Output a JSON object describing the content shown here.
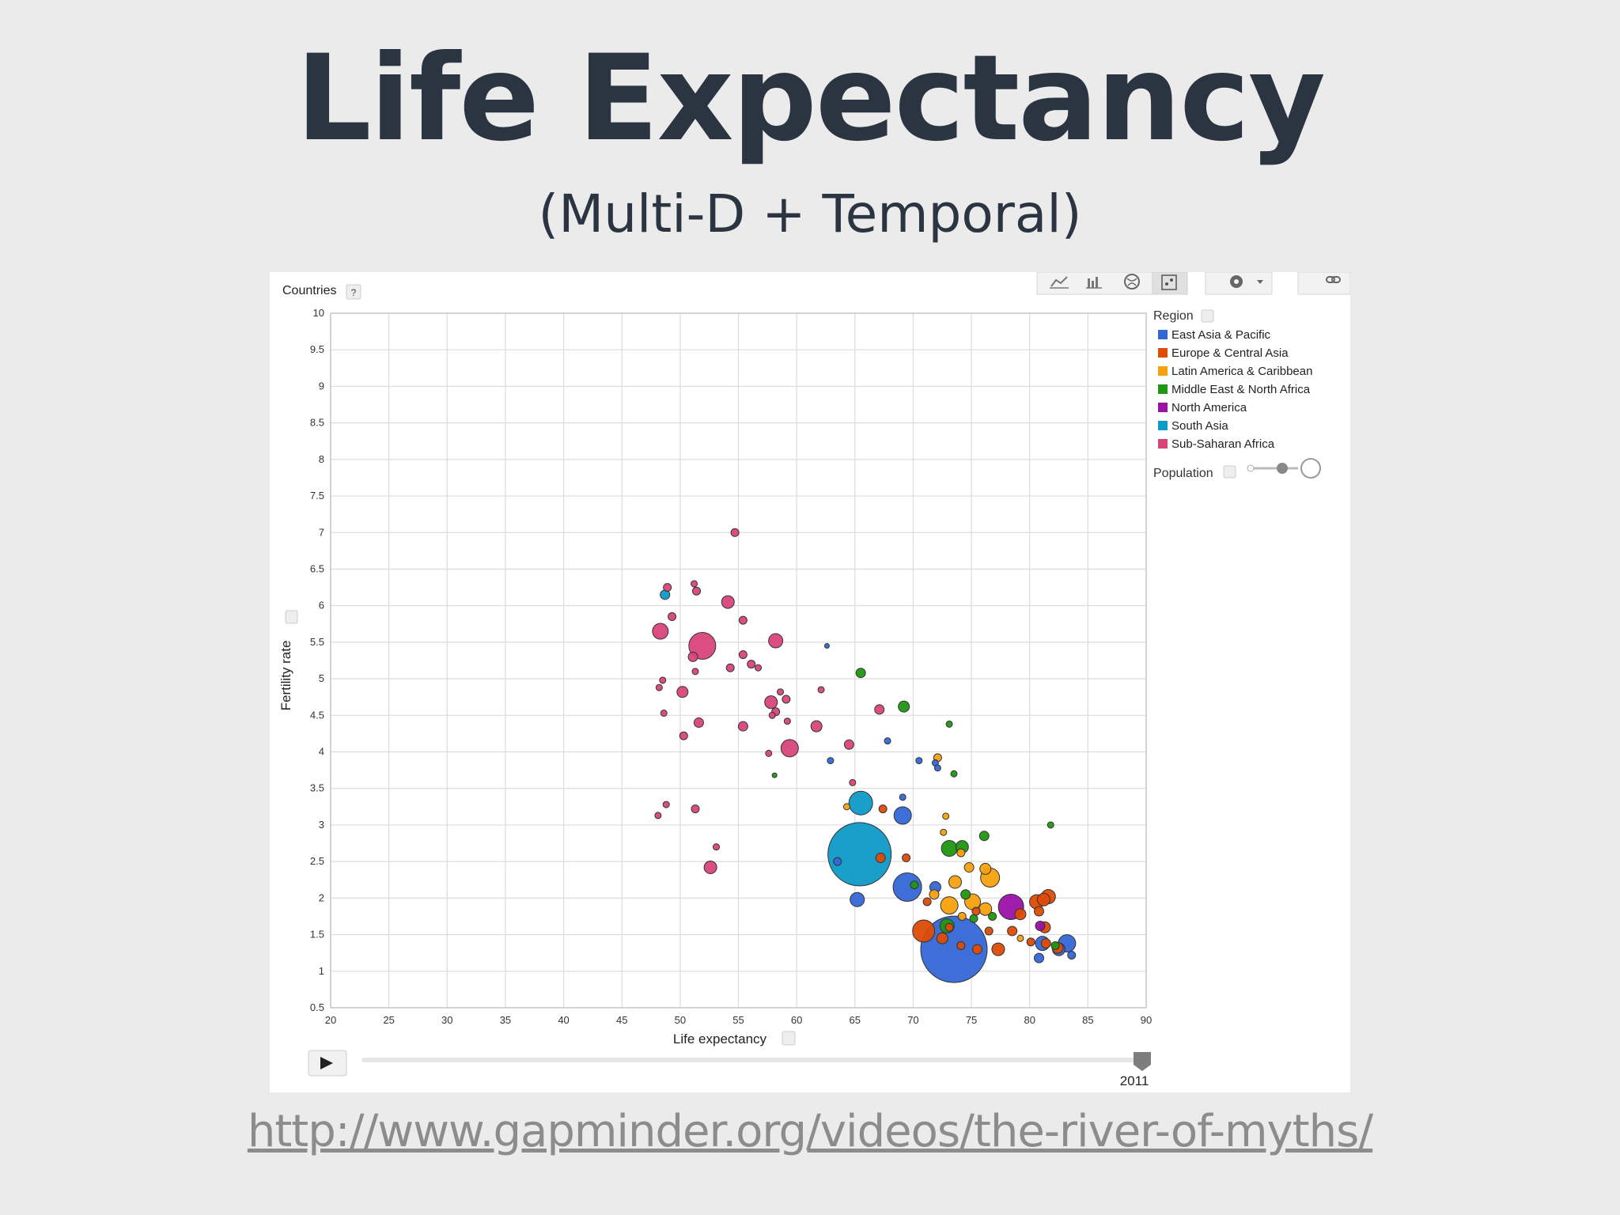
{
  "slide": {
    "title": "Life Expectancy",
    "subtitle": "(Multi-D + Temporal)",
    "link": "http://www.gapminder.org/videos/the-river-of-myths/"
  },
  "controls": {
    "entity_label": "Countries",
    "help": "?",
    "toolbar_icons": [
      "line-chart-icon",
      "bar-chart-icon",
      "map-icon",
      "bubble-chart-icon",
      "gear-icon",
      "link-icon"
    ],
    "play_icon": "play-icon",
    "year": "2011",
    "population_label": "Population"
  },
  "colors": {
    "East Asia & Pacific": "#3467d6",
    "Europe & Central Asia": "#dd4b06",
    "Latin America & Caribbean": "#f7a10d",
    "Middle East & North Africa": "#1f9710",
    "North America": "#9a11a5",
    "South Asia": "#0e9ac7",
    "Sub-Saharan Africa": "#d8457a"
  },
  "chart_data": {
    "type": "scatter",
    "xlabel": "Life expectancy",
    "ylabel": "Fertility rate",
    "xlim": [
      20,
      90
    ],
    "ylim": [
      0.5,
      10
    ],
    "xticks": [
      "20",
      "25",
      "30",
      "35",
      "40",
      "45",
      "50",
      "55",
      "60",
      "65",
      "70",
      "75",
      "80",
      "85",
      "90"
    ],
    "yticks": [
      "0.5",
      "1",
      "1.5",
      "2",
      "2.5",
      "3",
      "3.5",
      "4",
      "4.5",
      "5",
      "5.5",
      "6",
      "6.5",
      "7",
      "7.5",
      "8",
      "8.5",
      "9",
      "9.5",
      "10"
    ],
    "grid": true,
    "legend_title": "Region",
    "legend_position": "right",
    "legend": [
      "East Asia & Pacific",
      "Europe & Central Asia",
      "Latin America & Caribbean",
      "Middle East & North Africa",
      "North America",
      "South Asia",
      "Sub-Saharan Africa"
    ],
    "size_variable": "Population",
    "year": "2011",
    "series": [
      {
        "name": "Sub-Saharan Africa",
        "points": [
          {
            "x": 54.7,
            "y": 7.0,
            "r": 5
          },
          {
            "x": 48.9,
            "y": 6.25,
            "r": 5
          },
          {
            "x": 51.2,
            "y": 6.3,
            "r": 4
          },
          {
            "x": 51.4,
            "y": 6.2,
            "r": 5
          },
          {
            "x": 54.1,
            "y": 6.05,
            "r": 8
          },
          {
            "x": 49.3,
            "y": 5.85,
            "r": 5
          },
          {
            "x": 55.4,
            "y": 5.8,
            "r": 5
          },
          {
            "x": 48.3,
            "y": 5.65,
            "r": 10
          },
          {
            "x": 51.9,
            "y": 5.45,
            "r": 17
          },
          {
            "x": 58.2,
            "y": 5.52,
            "r": 9
          },
          {
            "x": 51.1,
            "y": 5.3,
            "r": 6
          },
          {
            "x": 55.4,
            "y": 5.33,
            "r": 5
          },
          {
            "x": 56.1,
            "y": 5.2,
            "r": 5
          },
          {
            "x": 56.7,
            "y": 5.15,
            "r": 4
          },
          {
            "x": 54.3,
            "y": 5.15,
            "r": 5
          },
          {
            "x": 51.3,
            "y": 5.1,
            "r": 4
          },
          {
            "x": 48.5,
            "y": 4.98,
            "r": 4
          },
          {
            "x": 48.2,
            "y": 4.88,
            "r": 4
          },
          {
            "x": 50.2,
            "y": 4.82,
            "r": 7
          },
          {
            "x": 58.6,
            "y": 4.82,
            "r": 4
          },
          {
            "x": 62.1,
            "y": 4.85,
            "r": 4
          },
          {
            "x": 57.8,
            "y": 4.68,
            "r": 8
          },
          {
            "x": 59.1,
            "y": 4.72,
            "r": 5
          },
          {
            "x": 58.2,
            "y": 4.55,
            "r": 5
          },
          {
            "x": 67.1,
            "y": 4.58,
            "r": 6
          },
          {
            "x": 48.6,
            "y": 4.53,
            "r": 4
          },
          {
            "x": 57.9,
            "y": 4.5,
            "r": 4
          },
          {
            "x": 51.6,
            "y": 4.4,
            "r": 6
          },
          {
            "x": 59.2,
            "y": 4.42,
            "r": 4
          },
          {
            "x": 55.4,
            "y": 4.35,
            "r": 6
          },
          {
            "x": 61.7,
            "y": 4.35,
            "r": 7
          },
          {
            "x": 50.3,
            "y": 4.22,
            "r": 5
          },
          {
            "x": 64.5,
            "y": 4.1,
            "r": 6
          },
          {
            "x": 59.4,
            "y": 4.05,
            "r": 11
          },
          {
            "x": 57.6,
            "y": 3.98,
            "r": 4
          },
          {
            "x": 64.8,
            "y": 3.58,
            "r": 4
          },
          {
            "x": 48.8,
            "y": 3.28,
            "r": 4
          },
          {
            "x": 48.1,
            "y": 3.13,
            "r": 4
          },
          {
            "x": 51.3,
            "y": 3.22,
            "r": 5
          },
          {
            "x": 53.1,
            "y": 2.7,
            "r": 4
          },
          {
            "x": 52.6,
            "y": 2.42,
            "r": 8
          }
        ]
      },
      {
        "name": "South Asia",
        "points": [
          {
            "x": 48.7,
            "y": 6.15,
            "r": 6
          },
          {
            "x": 65.5,
            "y": 3.3,
            "r": 15
          },
          {
            "x": 65.4,
            "y": 2.6,
            "r": 40
          }
        ]
      },
      {
        "name": "East Asia & Pacific",
        "points": [
          {
            "x": 62.6,
            "y": 5.45,
            "r": 3
          },
          {
            "x": 62.9,
            "y": 3.88,
            "r": 4
          },
          {
            "x": 67.8,
            "y": 4.15,
            "r": 4
          },
          {
            "x": 70.5,
            "y": 3.88,
            "r": 4
          },
          {
            "x": 71.9,
            "y": 3.85,
            "r": 4
          },
          {
            "x": 72.1,
            "y": 3.78,
            "r": 4
          },
          {
            "x": 69.1,
            "y": 3.38,
            "r": 4
          },
          {
            "x": 69.1,
            "y": 3.13,
            "r": 11
          },
          {
            "x": 63.5,
            "y": 2.5,
            "r": 5
          },
          {
            "x": 65.2,
            "y": 1.98,
            "r": 9
          },
          {
            "x": 69.5,
            "y": 2.15,
            "r": 18
          },
          {
            "x": 73.5,
            "y": 1.3,
            "r": 42
          },
          {
            "x": 71.9,
            "y": 2.15,
            "r": 7
          },
          {
            "x": 81.1,
            "y": 1.38,
            "r": 9
          },
          {
            "x": 82.5,
            "y": 1.3,
            "r": 8
          },
          {
            "x": 83.2,
            "y": 1.38,
            "r": 11
          },
          {
            "x": 83.6,
            "y": 1.22,
            "r": 5
          },
          {
            "x": 80.8,
            "y": 1.18,
            "r": 6
          }
        ]
      },
      {
        "name": "Middle East & North Africa",
        "points": [
          {
            "x": 65.5,
            "y": 5.08,
            "r": 6
          },
          {
            "x": 69.2,
            "y": 4.62,
            "r": 7
          },
          {
            "x": 73.1,
            "y": 4.38,
            "r": 4
          },
          {
            "x": 73.5,
            "y": 3.7,
            "r": 4
          },
          {
            "x": 58.1,
            "y": 3.68,
            "r": 3
          },
          {
            "x": 81.8,
            "y": 3.0,
            "r": 4
          },
          {
            "x": 76.1,
            "y": 2.85,
            "r": 6
          },
          {
            "x": 73.1,
            "y": 2.68,
            "r": 10
          },
          {
            "x": 74.2,
            "y": 2.7,
            "r": 8
          },
          {
            "x": 70.1,
            "y": 2.18,
            "r": 5
          },
          {
            "x": 72.9,
            "y": 1.62,
            "r": 9
          },
          {
            "x": 74.5,
            "y": 2.05,
            "r": 6
          },
          {
            "x": 75.2,
            "y": 1.72,
            "r": 5
          },
          {
            "x": 82.2,
            "y": 1.35,
            "r": 5
          },
          {
            "x": 76.8,
            "y": 1.75,
            "r": 5
          }
        ]
      },
      {
        "name": "Latin America & Caribbean",
        "points": [
          {
            "x": 72.1,
            "y": 3.92,
            "r": 5
          },
          {
            "x": 64.3,
            "y": 3.25,
            "r": 4
          },
          {
            "x": 72.8,
            "y": 3.12,
            "r": 4
          },
          {
            "x": 72.6,
            "y": 2.9,
            "r": 4
          },
          {
            "x": 74.1,
            "y": 2.62,
            "r": 5
          },
          {
            "x": 74.8,
            "y": 2.42,
            "r": 6
          },
          {
            "x": 76.2,
            "y": 2.4,
            "r": 7
          },
          {
            "x": 76.6,
            "y": 2.28,
            "r": 12
          },
          {
            "x": 73.6,
            "y": 2.22,
            "r": 8
          },
          {
            "x": 73.1,
            "y": 1.9,
            "r": 11
          },
          {
            "x": 75.1,
            "y": 1.95,
            "r": 10
          },
          {
            "x": 76.2,
            "y": 1.85,
            "r": 8
          },
          {
            "x": 74.2,
            "y": 1.75,
            "r": 5
          },
          {
            "x": 79.2,
            "y": 1.45,
            "r": 4
          },
          {
            "x": 71.8,
            "y": 2.05,
            "r": 6
          }
        ]
      },
      {
        "name": "Europe & Central Asia",
        "points": [
          {
            "x": 67.4,
            "y": 3.22,
            "r": 5
          },
          {
            "x": 67.2,
            "y": 2.55,
            "r": 6
          },
          {
            "x": 69.4,
            "y": 2.55,
            "r": 5
          },
          {
            "x": 70.9,
            "y": 1.55,
            "r": 14
          },
          {
            "x": 72.5,
            "y": 1.45,
            "r": 7
          },
          {
            "x": 75.5,
            "y": 1.3,
            "r": 6
          },
          {
            "x": 77.3,
            "y": 1.3,
            "r": 8
          },
          {
            "x": 78.5,
            "y": 1.55,
            "r": 6
          },
          {
            "x": 79.2,
            "y": 1.78,
            "r": 7
          },
          {
            "x": 80.6,
            "y": 1.95,
            "r": 9
          },
          {
            "x": 81.2,
            "y": 1.98,
            "r": 8
          },
          {
            "x": 81.6,
            "y": 2.02,
            "r": 9
          },
          {
            "x": 80.8,
            "y": 1.82,
            "r": 6
          },
          {
            "x": 81.3,
            "y": 1.6,
            "r": 7
          },
          {
            "x": 80.1,
            "y": 1.4,
            "r": 5
          },
          {
            "x": 81.4,
            "y": 1.38,
            "r": 6
          },
          {
            "x": 82.4,
            "y": 1.32,
            "r": 7
          },
          {
            "x": 75.4,
            "y": 1.82,
            "r": 5
          },
          {
            "x": 76.5,
            "y": 1.55,
            "r": 5
          },
          {
            "x": 74.1,
            "y": 1.35,
            "r": 5
          },
          {
            "x": 71.2,
            "y": 1.95,
            "r": 5
          },
          {
            "x": 73.1,
            "y": 1.6,
            "r": 5
          }
        ]
      },
      {
        "name": "North America",
        "points": [
          {
            "x": 78.4,
            "y": 1.88,
            "r": 16
          },
          {
            "x": 80.9,
            "y": 1.62,
            "r": 6
          }
        ]
      }
    ]
  }
}
